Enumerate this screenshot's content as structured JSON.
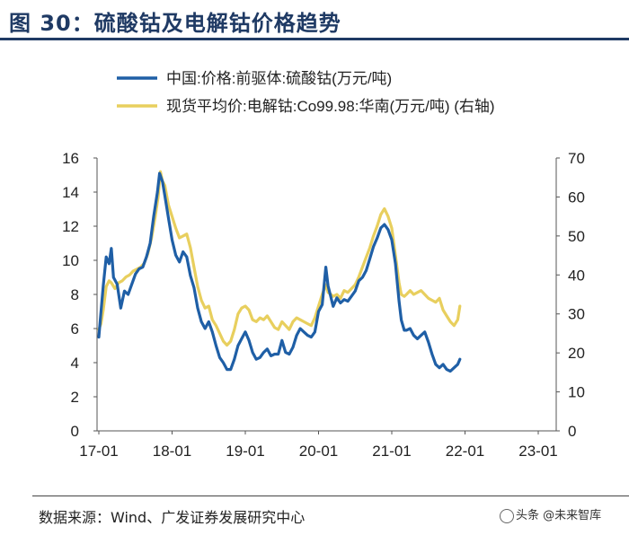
{
  "figure": {
    "title": "图 30：硫酸钴及电解钴价格趋势",
    "source": "数据来源：Wind、广发证券发展研究中心",
    "watermark": "头条 @未来智库"
  },
  "chart_data": {
    "type": "line",
    "title": "图 30：硫酸钴及电解钴价格趋势",
    "xlabel": "",
    "x_ticks": [
      "17-01",
      "18-01",
      "19-01",
      "20-01",
      "21-01",
      "22-01",
      "23-01"
    ],
    "y_left": {
      "ylim": [
        0,
        16
      ],
      "ticks": [
        "0",
        "2",
        "4",
        "6",
        "8",
        "10",
        "12",
        "14",
        "16"
      ]
    },
    "y_right": {
      "ylim": [
        0,
        70
      ],
      "ticks": [
        "0",
        "10",
        "20",
        "30",
        "40",
        "50",
        "60",
        "70"
      ]
    },
    "legend_position": "top-left",
    "series": [
      {
        "name": "中国:价格:前驱体:硫酸钴(万元/吨)",
        "axis": "left",
        "color": "#1f5fa6",
        "points": [
          [
            0.0,
            5.5
          ],
          [
            0.02,
            6.5
          ],
          [
            0.06,
            8.5
          ],
          [
            0.1,
            10.2
          ],
          [
            0.14,
            9.8
          ],
          [
            0.17,
            10.7
          ],
          [
            0.2,
            9.0
          ],
          [
            0.25,
            8.6
          ],
          [
            0.3,
            7.2
          ],
          [
            0.35,
            8.2
          ],
          [
            0.4,
            8.0
          ],
          [
            0.45,
            8.6
          ],
          [
            0.5,
            9.2
          ],
          [
            0.55,
            9.5
          ],
          [
            0.6,
            9.6
          ],
          [
            0.65,
            10.2
          ],
          [
            0.7,
            11.0
          ],
          [
            0.75,
            12.6
          ],
          [
            0.8,
            14.0
          ],
          [
            0.83,
            15.1
          ],
          [
            0.87,
            14.6
          ],
          [
            0.9,
            13.8
          ],
          [
            0.95,
            12.5
          ],
          [
            1.0,
            11.2
          ],
          [
            1.05,
            10.3
          ],
          [
            1.1,
            9.9
          ],
          [
            1.15,
            10.5
          ],
          [
            1.2,
            10.2
          ],
          [
            1.25,
            9.1
          ],
          [
            1.3,
            8.4
          ],
          [
            1.35,
            7.2
          ],
          [
            1.4,
            6.4
          ],
          [
            1.45,
            6.0
          ],
          [
            1.5,
            6.4
          ],
          [
            1.55,
            5.8
          ],
          [
            1.6,
            5.0
          ],
          [
            1.65,
            4.3
          ],
          [
            1.7,
            4.0
          ],
          [
            1.75,
            3.6
          ],
          [
            1.8,
            3.6
          ],
          [
            1.85,
            4.2
          ],
          [
            1.9,
            5.0
          ],
          [
            1.95,
            5.4
          ],
          [
            2.0,
            5.8
          ],
          [
            2.05,
            5.3
          ],
          [
            2.1,
            4.6
          ],
          [
            2.15,
            4.2
          ],
          [
            2.2,
            4.3
          ],
          [
            2.25,
            4.6
          ],
          [
            2.3,
            4.8
          ],
          [
            2.35,
            4.4
          ],
          [
            2.4,
            4.5
          ],
          [
            2.45,
            4.5
          ],
          [
            2.5,
            5.3
          ],
          [
            2.55,
            4.6
          ],
          [
            2.6,
            4.5
          ],
          [
            2.65,
            4.9
          ],
          [
            2.7,
            5.6
          ],
          [
            2.75,
            6.0
          ],
          [
            2.8,
            5.8
          ],
          [
            2.85,
            5.6
          ],
          [
            2.9,
            5.5
          ],
          [
            2.95,
            5.8
          ],
          [
            3.0,
            7.0
          ],
          [
            3.05,
            7.4
          ],
          [
            3.1,
            9.6
          ],
          [
            3.13,
            8.5
          ],
          [
            3.17,
            7.8
          ],
          [
            3.2,
            7.3
          ],
          [
            3.25,
            7.8
          ],
          [
            3.3,
            7.5
          ],
          [
            3.35,
            7.7
          ],
          [
            3.4,
            7.6
          ],
          [
            3.45,
            7.9
          ],
          [
            3.5,
            8.2
          ],
          [
            3.55,
            8.8
          ],
          [
            3.6,
            9.0
          ],
          [
            3.65,
            9.4
          ],
          [
            3.7,
            10.1
          ],
          [
            3.75,
            10.8
          ],
          [
            3.8,
            11.3
          ],
          [
            3.85,
            11.9
          ],
          [
            3.9,
            12.1
          ],
          [
            3.95,
            11.8
          ],
          [
            4.0,
            11.2
          ],
          [
            4.05,
            9.8
          ],
          [
            4.1,
            7.6
          ],
          [
            4.13,
            6.5
          ],
          [
            4.17,
            5.9
          ],
          [
            4.2,
            5.9
          ],
          [
            4.25,
            6.0
          ],
          [
            4.3,
            5.6
          ],
          [
            4.35,
            5.4
          ],
          [
            4.4,
            5.6
          ],
          [
            4.45,
            5.8
          ],
          [
            4.5,
            5.2
          ],
          [
            4.55,
            4.5
          ],
          [
            4.6,
            3.9
          ],
          [
            4.65,
            3.7
          ],
          [
            4.7,
            3.9
          ],
          [
            4.75,
            3.6
          ],
          [
            4.8,
            3.5
          ],
          [
            4.85,
            3.7
          ],
          [
            4.9,
            3.9
          ],
          [
            4.93,
            4.2
          ]
        ]
      },
      {
        "name": "现货平均价:电解钴:Co99.98:华南(万元/吨) (右轴)",
        "axis": "right",
        "color": "#e8cf5e",
        "points": [
          [
            0.0,
            26.0
          ],
          [
            0.03,
            27.5
          ],
          [
            0.06,
            31.0
          ],
          [
            0.1,
            37.0
          ],
          [
            0.14,
            38.5
          ],
          [
            0.17,
            38.0
          ],
          [
            0.22,
            36.5
          ],
          [
            0.27,
            38.0
          ],
          [
            0.32,
            38.5
          ],
          [
            0.37,
            39.5
          ],
          [
            0.42,
            40.0
          ],
          [
            0.47,
            41.0
          ],
          [
            0.52,
            41.5
          ],
          [
            0.57,
            42.0
          ],
          [
            0.62,
            43.0
          ],
          [
            0.67,
            45.5
          ],
          [
            0.72,
            49.5
          ],
          [
            0.77,
            55.0
          ],
          [
            0.81,
            60.0
          ],
          [
            0.84,
            66.5
          ],
          [
            0.87,
            64.0
          ],
          [
            0.9,
            63.0
          ],
          [
            0.95,
            58.0
          ],
          [
            1.0,
            55.0
          ],
          [
            1.05,
            52.0
          ],
          [
            1.1,
            49.5
          ],
          [
            1.15,
            50.0
          ],
          [
            1.2,
            50.5
          ],
          [
            1.25,
            47.0
          ],
          [
            1.3,
            42.0
          ],
          [
            1.35,
            37.0
          ],
          [
            1.4,
            33.5
          ],
          [
            1.45,
            31.5
          ],
          [
            1.5,
            32.0
          ],
          [
            1.55,
            28.5
          ],
          [
            1.6,
            27.0
          ],
          [
            1.65,
            25.0
          ],
          [
            1.7,
            23.0
          ],
          [
            1.75,
            22.0
          ],
          [
            1.8,
            23.0
          ],
          [
            1.85,
            26.0
          ],
          [
            1.9,
            30.0
          ],
          [
            1.95,
            31.5
          ],
          [
            2.0,
            32.0
          ],
          [
            2.05,
            31.0
          ],
          [
            2.1,
            28.5
          ],
          [
            2.15,
            28.0
          ],
          [
            2.2,
            29.0
          ],
          [
            2.25,
            28.5
          ],
          [
            2.3,
            29.5
          ],
          [
            2.35,
            28.0
          ],
          [
            2.4,
            26.5
          ],
          [
            2.45,
            26.0
          ],
          [
            2.5,
            28.0
          ],
          [
            2.55,
            27.0
          ],
          [
            2.6,
            26.0
          ],
          [
            2.65,
            28.0
          ],
          [
            2.7,
            29.0
          ],
          [
            2.75,
            28.5
          ],
          [
            2.8,
            28.0
          ],
          [
            2.85,
            27.5
          ],
          [
            2.9,
            27.0
          ],
          [
            2.95,
            29.0
          ],
          [
            3.0,
            32.0
          ],
          [
            3.05,
            35.0
          ],
          [
            3.1,
            37.5
          ],
          [
            3.13,
            35.5
          ],
          [
            3.17,
            35.0
          ],
          [
            3.2,
            34.5
          ],
          [
            3.25,
            35.0
          ],
          [
            3.3,
            34.0
          ],
          [
            3.35,
            36.0
          ],
          [
            3.4,
            35.5
          ],
          [
            3.45,
            36.5
          ],
          [
            3.5,
            37.5
          ],
          [
            3.55,
            39.5
          ],
          [
            3.6,
            42.0
          ],
          [
            3.65,
            44.5
          ],
          [
            3.7,
            47.0
          ],
          [
            3.75,
            50.0
          ],
          [
            3.8,
            52.5
          ],
          [
            3.85,
            55.5
          ],
          [
            3.9,
            57.0
          ],
          [
            3.95,
            55.0
          ],
          [
            4.0,
            52.0
          ],
          [
            4.05,
            45.0
          ],
          [
            4.1,
            38.0
          ],
          [
            4.13,
            35.0
          ],
          [
            4.17,
            34.5
          ],
          [
            4.2,
            35.0
          ],
          [
            4.25,
            36.0
          ],
          [
            4.3,
            35.0
          ],
          [
            4.35,
            35.5
          ],
          [
            4.4,
            36.0
          ],
          [
            4.45,
            35.0
          ],
          [
            4.5,
            34.0
          ],
          [
            4.55,
            33.5
          ],
          [
            4.6,
            33.0
          ],
          [
            4.65,
            34.0
          ],
          [
            4.7,
            31.0
          ],
          [
            4.75,
            29.5
          ],
          [
            4.8,
            28.0
          ],
          [
            4.85,
            27.0
          ],
          [
            4.9,
            28.5
          ],
          [
            4.93,
            32.0
          ]
        ]
      }
    ]
  }
}
